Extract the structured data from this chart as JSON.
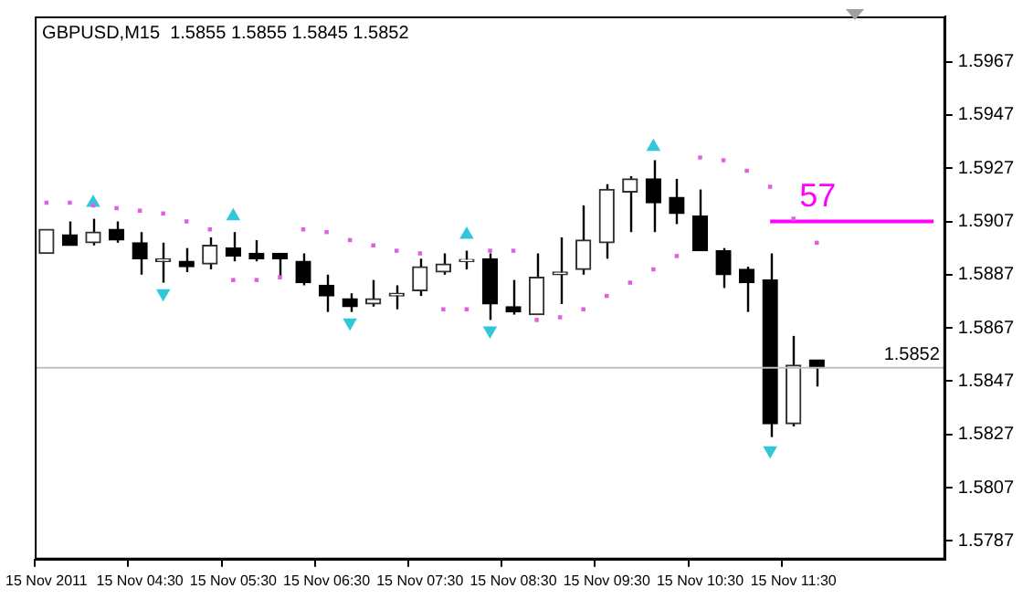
{
  "chart_data": {
    "type": "candlestick",
    "title": "GBPUSD,M15  1.5855 1.5855 1.5845 1.5852",
    "categories": [
      "15 Nov 2011",
      null,
      null,
      null,
      "15 Nov 04:30",
      null,
      null,
      null,
      "15 Nov 05:30",
      null,
      null,
      null,
      "15 Nov 06:30",
      null,
      null,
      null,
      "15 Nov 07:30",
      null,
      null,
      null,
      "15 Nov 08:30",
      null,
      null,
      null,
      "15 Nov 09:30",
      null,
      null,
      null,
      "15 Nov 10:30",
      null,
      null,
      null,
      "15 Nov 11:30",
      null,
      null,
      null,
      null,
      null,
      null
    ],
    "ohlc": [
      [
        1.5895,
        1.5904,
        1.5895,
        1.5904
      ],
      [
        1.5902,
        1.5907,
        1.5898,
        1.5898
      ],
      [
        1.5899,
        1.5908,
        1.5898,
        1.5903
      ],
      [
        1.5904,
        1.5907,
        1.5899,
        1.59
      ],
      [
        1.5899,
        1.5903,
        1.5887,
        1.5893
      ],
      [
        1.5892,
        1.5899,
        1.5884,
        1.5893
      ],
      [
        1.5892,
        1.5897,
        1.5888,
        1.589
      ],
      [
        1.5891,
        1.5901,
        1.5889,
        1.5898
      ],
      [
        1.5897,
        1.5903,
        1.5892,
        1.5894
      ],
      [
        1.5895,
        1.59,
        1.5892,
        1.5893
      ],
      [
        1.5895,
        1.5895,
        1.5886,
        1.5893
      ],
      [
        1.5892,
        1.5895,
        1.5883,
        1.5884
      ],
      [
        1.5883,
        1.5887,
        1.5873,
        1.5879
      ],
      [
        1.5878,
        1.588,
        1.5873,
        1.5875
      ],
      [
        1.5876,
        1.5885,
        1.5875,
        1.5878
      ],
      [
        1.5879,
        1.5883,
        1.5874,
        1.588
      ],
      [
        1.5881,
        1.5893,
        1.5879,
        1.589
      ],
      [
        1.5888,
        1.5895,
        1.5887,
        1.5891
      ],
      [
        1.5892,
        1.5896,
        1.5889,
        1.5892
      ],
      [
        1.5893,
        1.5895,
        1.587,
        1.5876
      ],
      [
        1.5875,
        1.5885,
        1.5872,
        1.5873
      ],
      [
        1.5872,
        1.5895,
        1.5872,
        1.5886
      ],
      [
        1.5887,
        1.5901,
        1.5876,
        1.5888
      ],
      [
        1.5889,
        1.5913,
        1.5887,
        1.59
      ],
      [
        1.5899,
        1.5921,
        1.5893,
        1.5919
      ],
      [
        1.5918,
        1.5924,
        1.5903,
        1.5923
      ],
      [
        1.5923,
        1.593,
        1.5903,
        1.5914
      ],
      [
        1.5916,
        1.5923,
        1.5906,
        1.591
      ],
      [
        1.5909,
        1.5919,
        1.5896,
        1.5896
      ],
      [
        1.5896,
        1.5897,
        1.5882,
        1.5887
      ],
      [
        1.5889,
        1.589,
        1.5873,
        1.5884
      ],
      [
        1.5885,
        1.5895,
        1.5826,
        1.5831
      ],
      [
        1.5831,
        1.5864,
        1.583,
        1.5853
      ],
      [
        1.5855,
        1.5855,
        1.5845,
        1.5852
      ],
      null,
      null,
      null,
      null,
      null
    ],
    "series": [
      {
        "type": "scatter",
        "marker": "square",
        "color": "#e060e0",
        "values": [
          1.5914,
          1.5914,
          1.5913,
          1.5912,
          1.5911,
          1.591,
          1.5907,
          1.5904,
          1.5885,
          1.5885,
          1.5886,
          1.5904,
          1.5903,
          1.59,
          1.5898,
          1.5896,
          1.5895,
          1.5874,
          1.5874,
          1.5896,
          1.5896,
          1.587,
          1.5871,
          1.5874,
          1.5879,
          1.5884,
          1.5889,
          1.5894,
          1.5931,
          1.593,
          1.5926,
          1.592,
          1.5908,
          1.5899,
          null,
          null,
          null,
          null,
          null
        ]
      },
      {
        "type": "scatter",
        "marker": "triangle",
        "color": "#30c8d8",
        "values": [
          null,
          null,
          1.5914,
          null,
          null,
          null,
          null,
          null,
          1.5909,
          null,
          null,
          null,
          null,
          null,
          null,
          null,
          null,
          null,
          1.5902,
          null,
          null,
          null,
          null,
          null,
          null,
          null,
          1.5935,
          null,
          null,
          null,
          null,
          null,
          null,
          null,
          null,
          null,
          null,
          null,
          null
        ]
      },
      {
        "type": "scatter",
        "marker": "triangle",
        "color": "#30c8d8",
        "values": [
          null,
          null,
          null,
          null,
          null,
          1.588,
          null,
          null,
          null,
          null,
          null,
          null,
          null,
          1.5869,
          null,
          null,
          null,
          null,
          null,
          1.5866,
          null,
          null,
          null,
          null,
          null,
          null,
          null,
          null,
          null,
          null,
          null,
          1.5821,
          null,
          null,
          null,
          null,
          null,
          null,
          null
        ]
      },
      {
        "type": "line",
        "name": "57",
        "color": "#ff00ff",
        "values": [
          null,
          null,
          null,
          null,
          null,
          null,
          null,
          null,
          null,
          null,
          null,
          null,
          null,
          null,
          null,
          null,
          null,
          null,
          null,
          null,
          null,
          null,
          null,
          null,
          null,
          null,
          null,
          null,
          null,
          null,
          null,
          1.5907,
          1.5907,
          1.5907,
          1.5907,
          1.5907,
          1.5907,
          1.5907,
          1.5907
        ]
      }
    ],
    "ylim": [
      1.578,
      1.5984
    ],
    "yticks": [
      1.5787,
      1.5807,
      1.5827,
      1.5847,
      1.5867,
      1.5887,
      1.5907,
      1.5927,
      1.5947,
      1.5967
    ],
    "ref_lines": [
      {
        "axis": "y",
        "value": 1.5852,
        "label": "1.5852",
        "color": "#c0c0c0"
      }
    ]
  }
}
